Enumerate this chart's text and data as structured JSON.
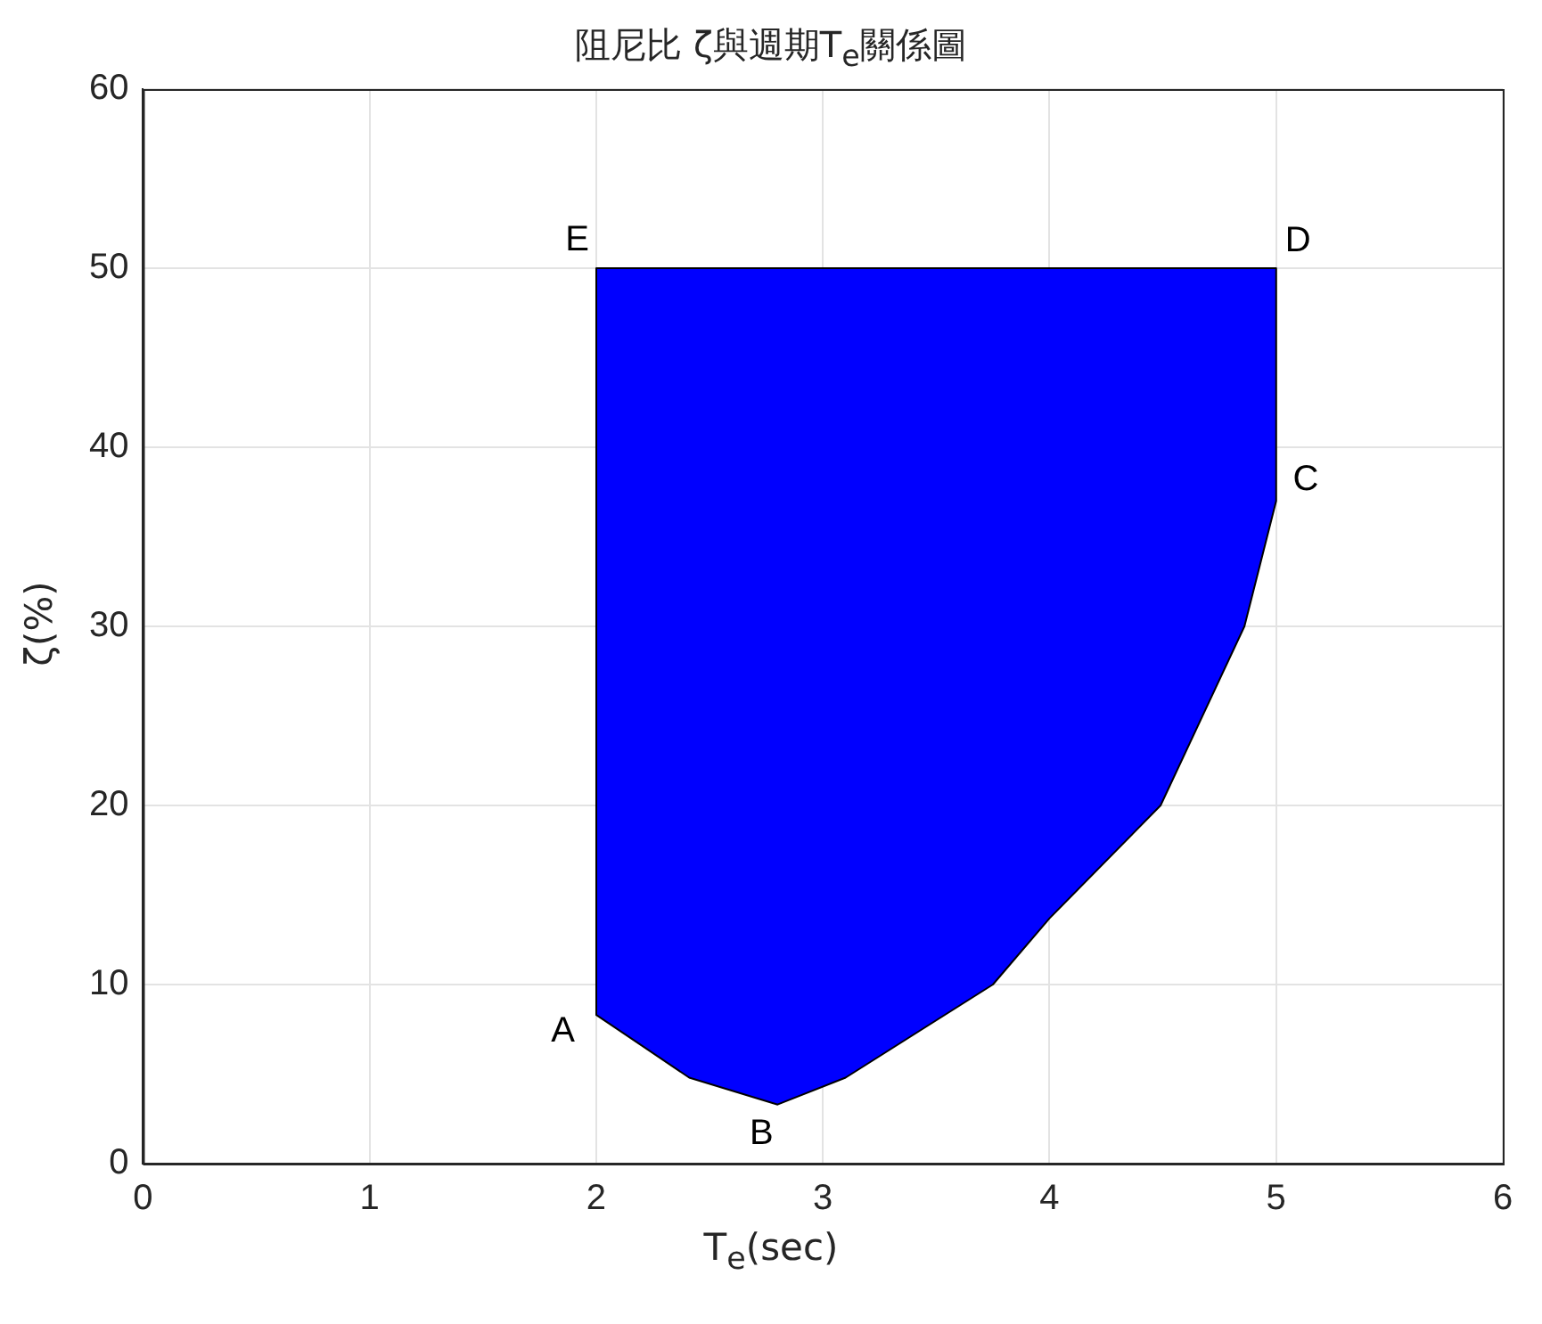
{
  "chart_data": {
    "type": "area",
    "title": "阻尼比 ζ與週期T$_{e}$關係圖",
    "xlabel": "T$_{e}$(sec)",
    "ylabel": "ζ(%)",
    "x": [
      2,
      2.2,
      2.41,
      2.8,
      3.1,
      3.75,
      4.0,
      4.49,
      4.86,
      5,
      5,
      2,
      2
    ],
    "series": [
      {
        "color": "#0000ff",
        "values": [
          8.3,
          6.6,
          4.8,
          3.3,
          4.8,
          10,
          13.7,
          20,
          30,
          37,
          50,
          50,
          8.3
        ]
      }
    ],
    "xlim": [
      0,
      6
    ],
    "xticks": [
      0,
      1,
      2,
      3,
      4,
      5,
      6
    ],
    "ylim": [
      0,
      60
    ],
    "yticks": [
      0,
      10,
      20,
      30,
      40,
      50,
      60
    ],
    "grid": true,
    "annotations": [
      {
        "text": "A",
        "x": 2,
        "y": 8.3
      },
      {
        "text": "B",
        "x": 2.8,
        "y": 3.3
      },
      {
        "text": "C",
        "x": 5,
        "y": 37
      },
      {
        "text": "D",
        "x": 5,
        "y": 50
      },
      {
        "text": "E",
        "x": 2,
        "y": 50
      }
    ]
  }
}
